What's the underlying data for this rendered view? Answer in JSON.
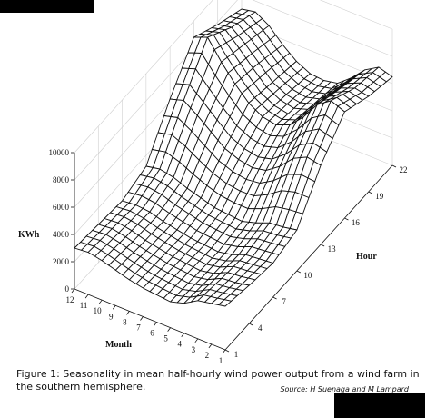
{
  "caption": {
    "text": "Figure 1: Seasonality in mean half-hourly wind power output from a wind farm in the southern hemisphere.",
    "source": "Source: H Suenaga and M Lampard"
  },
  "chart_data": {
    "type": "surface",
    "zlabel": "KWh",
    "xlabel": "Month",
    "ylabel": "Hour",
    "z_ticks": [
      0,
      2000,
      4000,
      6000,
      8000,
      10000
    ],
    "zlim": [
      0,
      10000
    ],
    "month_ticks": [
      12,
      11,
      10,
      9,
      8,
      7,
      6,
      5,
      4,
      3,
      2,
      1
    ],
    "hour_ticks": [
      1,
      4,
      7,
      10,
      13,
      16,
      19,
      22
    ],
    "months": [
      1,
      2,
      3,
      4,
      5,
      6,
      7,
      8,
      9,
      10,
      11,
      12
    ],
    "hours": [
      1,
      4,
      7,
      10,
      13,
      16,
      19,
      22
    ],
    "kwh": [
      [
        3200,
        2800,
        2500,
        3000,
        5800,
        7800,
        7000,
        6500
      ],
      [
        3000,
        2600,
        2400,
        2800,
        6000,
        8200,
        7200,
        6800
      ],
      [
        2800,
        2500,
        2300,
        2700,
        5500,
        7500,
        6800,
        6200
      ],
      [
        2200,
        2000,
        1900,
        2300,
        4500,
        6200,
        5800,
        5200
      ],
      [
        1900,
        1800,
        1700,
        2000,
        3800,
        5200,
        4800,
        4400
      ],
      [
        2000,
        1900,
        1800,
        2100,
        3600,
        4800,
        4500,
        4200
      ],
      [
        2100,
        2000,
        1900,
        2200,
        3800,
        5000,
        4700,
        4300
      ],
      [
        2300,
        2200,
        2100,
        2500,
        4200,
        5600,
        5200,
        4800
      ],
      [
        2600,
        2400,
        2300,
        2800,
        5000,
        6600,
        6200,
        5600
      ],
      [
        2900,
        2700,
        2600,
        3200,
        5800,
        7800,
        7200,
        6600
      ],
      [
        3100,
        2900,
        2700,
        3400,
        6500,
        9200,
        8000,
        7200
      ],
      [
        3000,
        2800,
        2600,
        3200,
        6200,
        8800,
        7800,
        7000
      ]
    ]
  }
}
